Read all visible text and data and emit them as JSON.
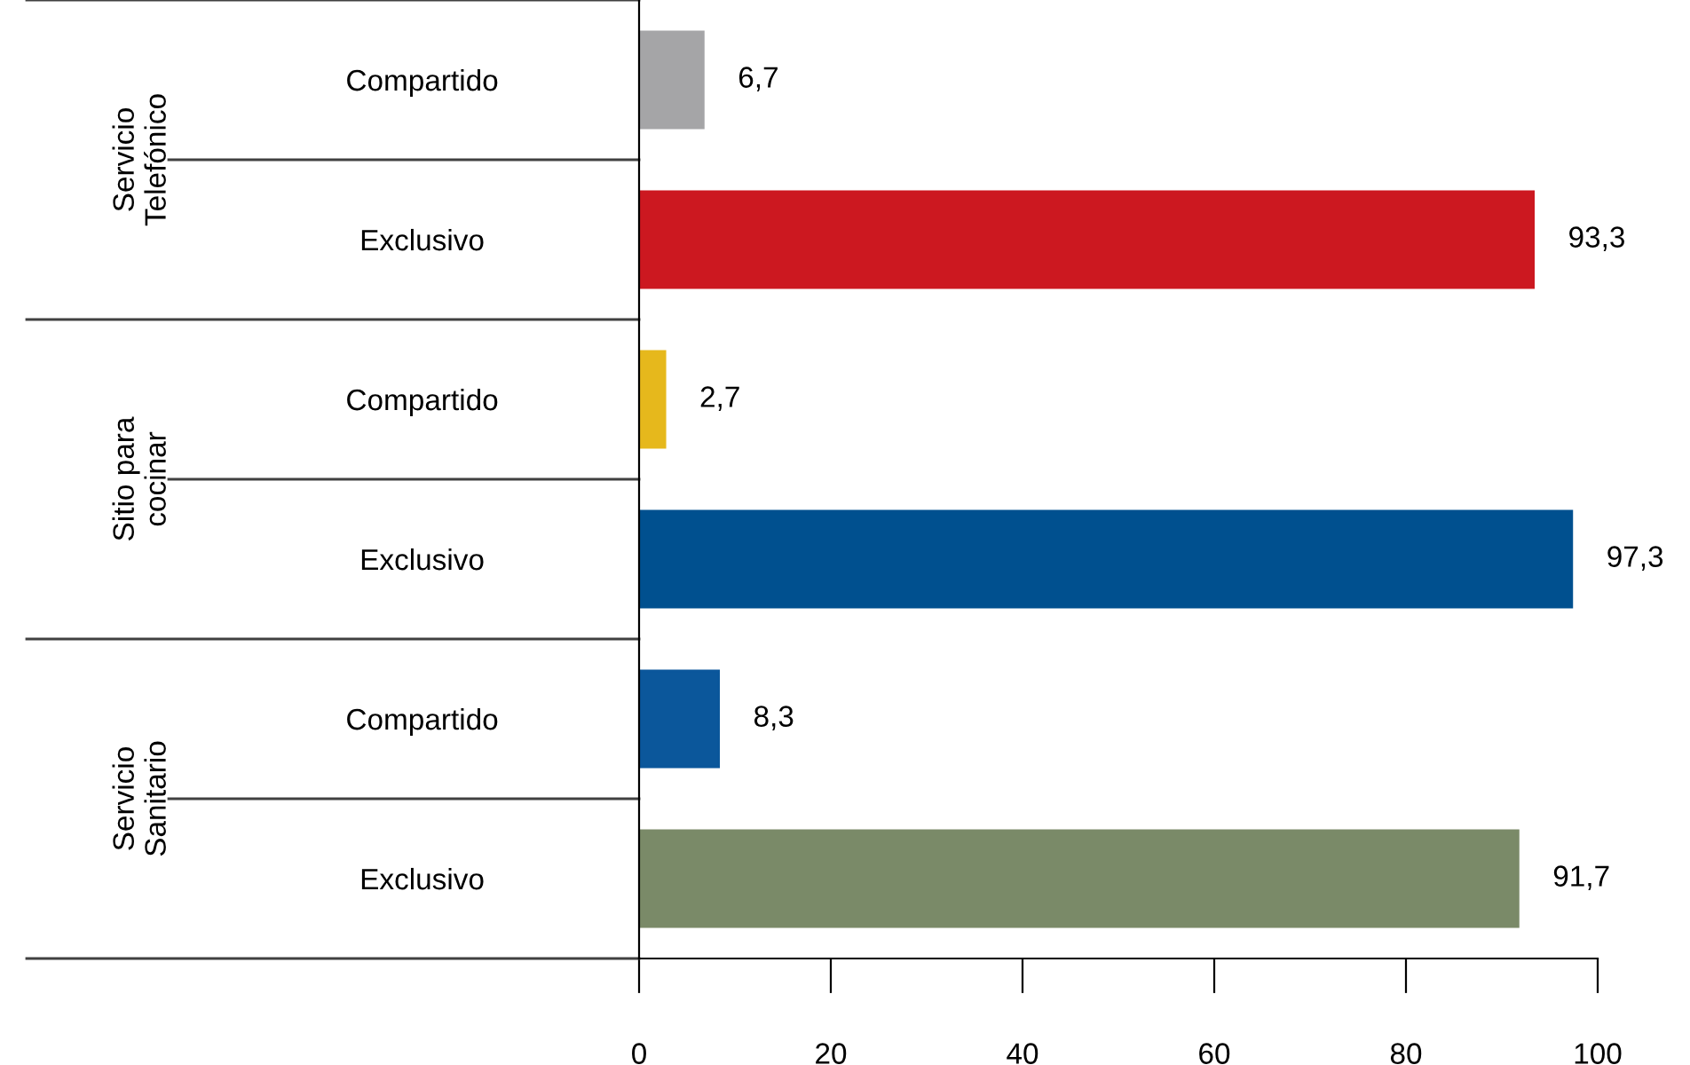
{
  "chart_data": {
    "type": "bar",
    "orientation": "horizontal",
    "categories": [
      "Compartido",
      "Exclusivo",
      "Compartido",
      "Exclusivo",
      "Compartido",
      "Exclusivo"
    ],
    "values": [
      6.7,
      93.3,
      2.7,
      97.3,
      8.3,
      91.7
    ],
    "colors": [
      "#a5a5a7",
      "#cc1820",
      "#e6b81c",
      "#00508f",
      "#0b579b",
      "#7a8a68"
    ],
    "value_labels": [
      "6,7",
      "93,3",
      "2,7",
      "97,3",
      "8,3",
      "91,7"
    ],
    "annotations": [
      "Servicio\nTelefónico",
      "Sitio para\ncocinar",
      "Servicio\nSanitario"
    ],
    "xlim": [
      0,
      100
    ],
    "xticks": [
      0,
      20,
      40,
      60,
      80,
      100
    ],
    "grid": false,
    "legend": false
  }
}
